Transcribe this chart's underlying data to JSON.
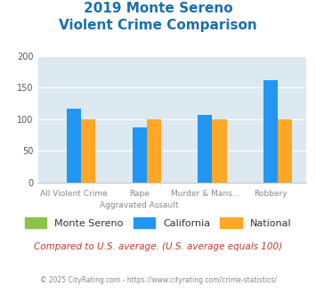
{
  "title_line1": "2019 Monte Sereno",
  "title_line2": "Violent Crime Comparison",
  "title_color": "#1a6faf",
  "cat_top": [
    "",
    "Rape",
    "Murder & Mans...",
    ""
  ],
  "cat_bottom": [
    "All Violent Crime",
    "Aggravated Assault",
    "",
    "Robbery"
  ],
  "monte_sereno": [
    0,
    0,
    0,
    0
  ],
  "california": [
    117,
    87,
    107,
    162
  ],
  "national": [
    100,
    100,
    100,
    100
  ],
  "bar_color_ms": "#8bc34a",
  "bar_color_ca": "#2196f3",
  "bar_color_nat": "#ffa726",
  "ylim": [
    0,
    200
  ],
  "yticks": [
    0,
    50,
    100,
    150,
    200
  ],
  "plot_bg": "#dce9f0",
  "note": "Compared to U.S. average. (U.S. average equals 100)",
  "note_color": "#c0392b",
  "footer": "© 2025 CityRating.com - https://www.cityrating.com/crime-statistics/",
  "footer_color": "#888888",
  "legend_labels": [
    "Monte Sereno",
    "California",
    "National"
  ],
  "legend_colors": [
    "#8bc34a",
    "#2196f3",
    "#ffa726"
  ]
}
